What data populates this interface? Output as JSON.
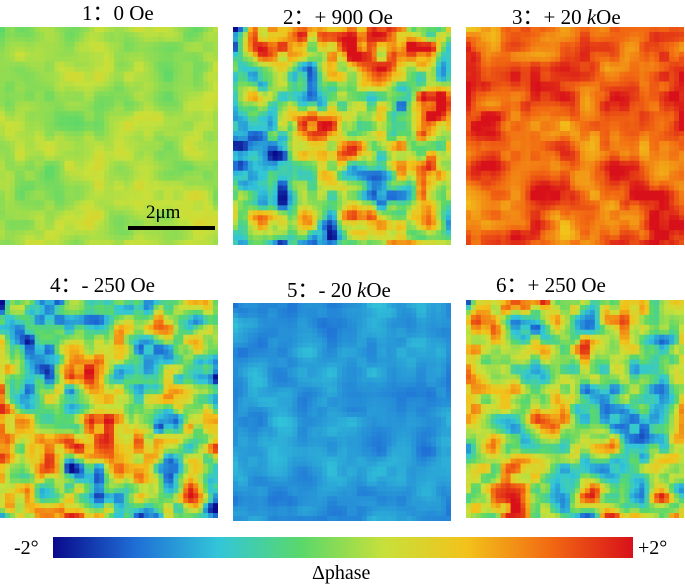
{
  "panels": [
    {
      "label": "1：0 Oe",
      "unit_italic": false
    },
    {
      "label": "2：+ 900 Oe",
      "unit_italic": false
    },
    {
      "label": "3：+ 20 ",
      "unit_prefix": "k",
      "unit_suffix": "Oe",
      "unit_italic": true
    },
    {
      "label": "4：- 250 Oe",
      "unit_italic": false
    },
    {
      "label": "5：- 20 ",
      "unit_prefix": "k",
      "unit_suffix": "Oe",
      "unit_italic": true
    },
    {
      "label": "6：+ 250 Oe",
      "unit_italic": false
    }
  ],
  "scale_bar": {
    "label": "2μm"
  },
  "colorbar": {
    "min_label": "-2°",
    "max_label": "+2°",
    "title": "Δphase",
    "colors": [
      "#0a0a8c",
      "#1f6fd6",
      "#32c6d8",
      "#5ad86a",
      "#c8e03a",
      "#f2c21a",
      "#f26a12",
      "#d8101a"
    ]
  }
}
